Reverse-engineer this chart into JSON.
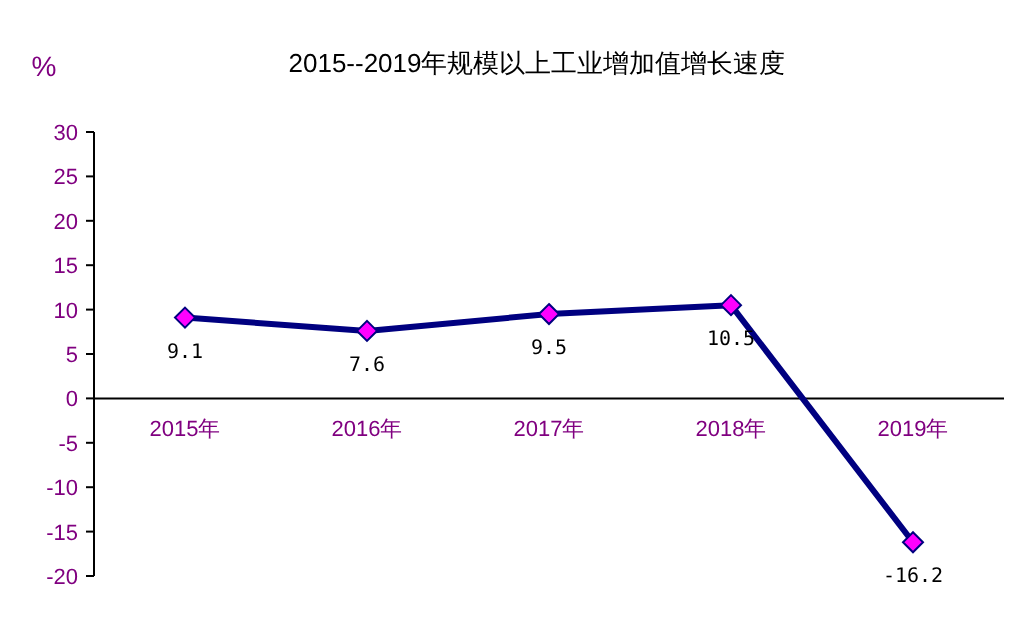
{
  "chart_data": {
    "type": "line",
    "title": "2015--2019年规模以上工业增加值增长速度",
    "ylabel": "%",
    "categories": [
      "2015年",
      "2016年",
      "2017年",
      "2018年",
      "2019年"
    ],
    "series": [
      {
        "color": "#000080",
        "values": [
          9.1,
          7.6,
          9.5,
          10.5,
          -16.2
        ]
      }
    ],
    "ylim": [
      -20,
      30
    ],
    "yticks": [
      -20,
      -15,
      -10,
      -5,
      0,
      5,
      10,
      15,
      20,
      25,
      30
    ],
    "marker": "diamond",
    "line_style": "solid",
    "data_labels": true
  }
}
